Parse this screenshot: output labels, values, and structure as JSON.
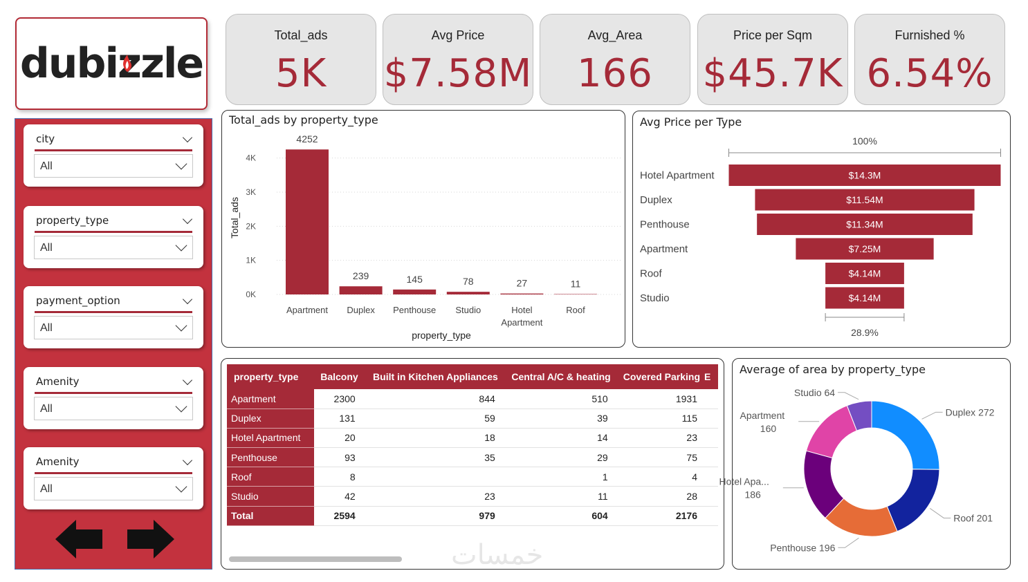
{
  "logo": {
    "text": "dubizzle"
  },
  "kpis": [
    {
      "label": "Total_ads",
      "value": "5K"
    },
    {
      "label": "Avg Price",
      "value": "$7.58M"
    },
    {
      "label": "Avg_Area",
      "value": "166"
    },
    {
      "label": "Price per Sqm",
      "value": "$45.7K"
    },
    {
      "label": "Furnished %",
      "value": "6.54%"
    }
  ],
  "filters": [
    {
      "title": "city",
      "value": "All"
    },
    {
      "title": "property_type",
      "value": "All"
    },
    {
      "title": "payment_option",
      "value": "All"
    },
    {
      "title": "Amenity",
      "value": "All"
    },
    {
      "title": "Amenity",
      "value": "All"
    }
  ],
  "colors": {
    "accent": "#a52a38",
    "panel": "#c3323e"
  },
  "icons": {
    "prev": "arrow-left-icon",
    "next": "arrow-right-icon"
  },
  "chart_data": [
    {
      "type": "bar",
      "title": "Total_ads by property_type",
      "xlabel": "property_type",
      "ylabel": "Total_ads",
      "categories": [
        "Apartment",
        "Duplex",
        "Penthouse",
        "Studio",
        "Hotel Apartment",
        "Roof"
      ],
      "values": [
        4252,
        239,
        145,
        78,
        27,
        11
      ],
      "yticks": [
        "0K",
        "1K",
        "2K",
        "3K",
        "4K"
      ],
      "ylim": [
        0,
        4500
      ],
      "grid": true
    },
    {
      "type": "funnel",
      "title": "Avg Price per Type",
      "top_label": "100%",
      "bottom_label": "28.9%",
      "categories": [
        "Hotel Apartment",
        "Duplex",
        "Penthouse",
        "Apartment",
        "Roof",
        "Studio"
      ],
      "values": [
        14.3,
        11.54,
        11.34,
        7.25,
        4.14,
        4.14
      ],
      "labels": [
        "$14.3M",
        "$11.54M",
        "$11.34M",
        "$7.25M",
        "$4.14M",
        "$4.14M"
      ]
    },
    {
      "type": "table",
      "columns": [
        "property_type",
        "Balcony",
        "Built in Kitchen Appliances",
        "Central A/C & heating",
        "Covered Parking",
        "E"
      ],
      "rows": [
        [
          "Apartment",
          "2300",
          "844",
          "510",
          "1931"
        ],
        [
          "Duplex",
          "131",
          "59",
          "39",
          "115"
        ],
        [
          "Hotel Apartment",
          "20",
          "18",
          "14",
          "23"
        ],
        [
          "Penthouse",
          "93",
          "35",
          "29",
          "75"
        ],
        [
          "Roof",
          "8",
          "",
          "1",
          "4"
        ],
        [
          "Studio",
          "42",
          "23",
          "11",
          "28"
        ],
        [
          "Total",
          "2594",
          "979",
          "604",
          "2176"
        ]
      ]
    },
    {
      "type": "pie",
      "title": "Average of area by property_type",
      "categories": [
        "Duplex",
        "Roof",
        "Penthouse",
        "Hotel Apartment",
        "Apartment",
        "Studio"
      ],
      "values": [
        272,
        201,
        196,
        186,
        160,
        64
      ],
      "labels": [
        "Duplex 272",
        "Roof 201",
        "Penthouse 196",
        "Hotel Apa...|186",
        "Apartment|160",
        "Studio 64"
      ],
      "colors": [
        "#118dff",
        "#12239e",
        "#e66c37",
        "#6b007b",
        "#e044a7",
        "#744ec2"
      ]
    }
  ],
  "watermark": "خمسات"
}
